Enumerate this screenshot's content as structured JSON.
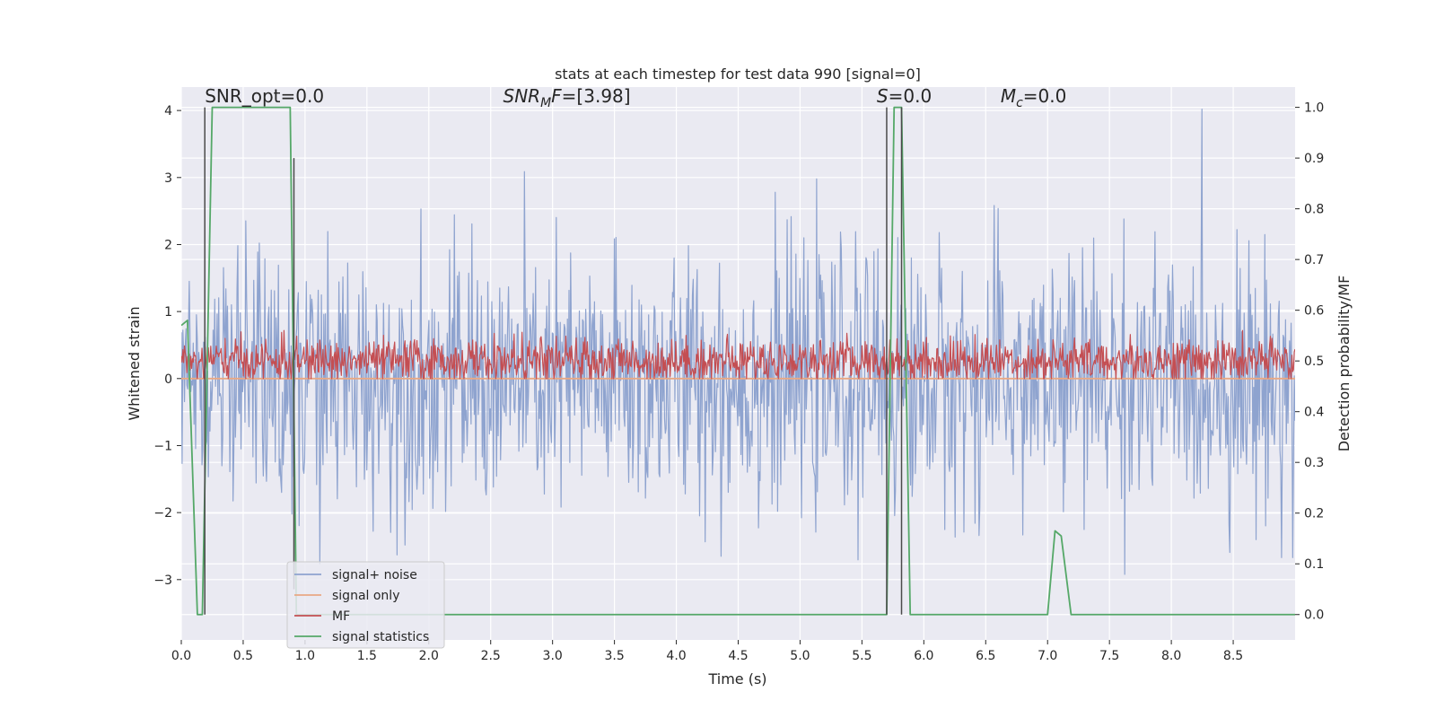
{
  "chart_data": {
    "type": "line",
    "title": "stats at each timestep for test data 990 [signal=0]",
    "xlabel": "Time (s)",
    "ylabel_left": "Whitened strain",
    "ylabel_right": "Detection probability/MF",
    "xlim": [
      0.0,
      9.0
    ],
    "ylim_left": [
      -3.9,
      4.35
    ],
    "ylim_right": [
      -0.05,
      1.04
    ],
    "xticks": [
      0.0,
      0.5,
      1.0,
      1.5,
      2.0,
      2.5,
      3.0,
      3.5,
      4.0,
      4.5,
      5.0,
      5.5,
      6.0,
      6.5,
      7.0,
      7.5,
      8.0,
      8.5
    ],
    "xtick_labels": [
      "0.0",
      "0.5",
      "1.0",
      "1.5",
      "2.0",
      "2.5",
      "3.0",
      "3.5",
      "4.0",
      "4.5",
      "5.0",
      "5.5",
      "6.0",
      "6.5",
      "7.0",
      "7.5",
      "8.0",
      "8.5"
    ],
    "yticks_left": [
      -3,
      -2,
      -1,
      0,
      1,
      2,
      3,
      4
    ],
    "ytick_labels_left": [
      "−3",
      "−2",
      "−1",
      "0",
      "1",
      "2",
      "3",
      "4"
    ],
    "yticks_right": [
      0.0,
      0.1,
      0.2,
      0.3,
      0.4,
      0.5,
      0.6,
      0.7,
      0.8,
      0.9,
      1.0
    ],
    "ytick_labels_right": [
      "0.0",
      "0.1",
      "0.2",
      "0.3",
      "0.4",
      "0.5",
      "0.6",
      "0.7",
      "0.8",
      "0.9",
      "1.0"
    ],
    "grid": true,
    "legend_position": "lower-left",
    "annotations": [
      {
        "id": "snr-opt",
        "x": 0.19,
        "y_right": 1.01,
        "parts": [
          {
            "t": "SNR_opt=0.0",
            "italic": false
          }
        ]
      },
      {
        "id": "snr-mf",
        "x": 2.6,
        "y_right": 1.01,
        "parts": [
          {
            "t": "SNR",
            "italic": true
          },
          {
            "t": "M",
            "italic": true,
            "sub": true
          },
          {
            "t": "F",
            "italic": true
          },
          {
            "t": "=[3.98]",
            "italic": false
          }
        ]
      },
      {
        "id": "s",
        "x": 5.62,
        "y_right": 1.01,
        "parts": [
          {
            "t": "S",
            "italic": true
          },
          {
            "t": "=0.0",
            "italic": false
          }
        ]
      },
      {
        "id": "mc",
        "x": 6.62,
        "y_right": 1.01,
        "parts": [
          {
            "t": "M",
            "italic": true
          },
          {
            "t": "c",
            "italic": true,
            "sub": true
          },
          {
            "t": "=0.0",
            "italic": false
          }
        ]
      }
    ],
    "series": [
      {
        "name": "signal+ noise",
        "axis": "left",
        "color": "#8ea3cf",
        "kind": "noise",
        "n": 1400,
        "std": 0.95,
        "mean": -0.05
      },
      {
        "name": "signal only",
        "axis": "left",
        "color": "#e9a884",
        "kind": "line",
        "x": [
          0.0,
          9.0
        ],
        "y": [
          0.0,
          0.0
        ]
      },
      {
        "name": "MF",
        "axis": "right",
        "color": "#c44e52",
        "kind": "noise",
        "n": 1400,
        "std": 0.022,
        "mean": 0.5,
        "min": 0.465,
        "max": 0.56
      },
      {
        "name": "signal statistics",
        "axis": "right",
        "color": "#55a868",
        "kind": "line",
        "x": [
          0.0,
          0.05,
          0.13,
          0.17,
          0.25,
          0.88,
          0.93,
          5.7,
          5.76,
          5.82,
          5.89,
          7.0,
          7.06,
          7.11,
          7.19,
          9.0
        ],
        "y": [
          0.57,
          0.58,
          0.0,
          0.0,
          1.0,
          1.0,
          0.0,
          0.0,
          1.0,
          1.0,
          0.0,
          0.0,
          0.165,
          0.155,
          0.0,
          0.0
        ]
      }
    ],
    "vertical_lines": [
      {
        "x": 0.19,
        "y_right": [
          0.0,
          1.0
        ],
        "color": "#4a4a4a"
      },
      {
        "x": 0.91,
        "y_right": [
          0.05,
          0.9
        ],
        "color": "#4a4a4a"
      },
      {
        "x": 5.7,
        "y_right": [
          0.0,
          1.0
        ],
        "color": "#4a4a4a"
      },
      {
        "x": 5.82,
        "y_right": [
          0.0,
          1.0
        ],
        "color": "#4a4a4a"
      }
    ]
  }
}
